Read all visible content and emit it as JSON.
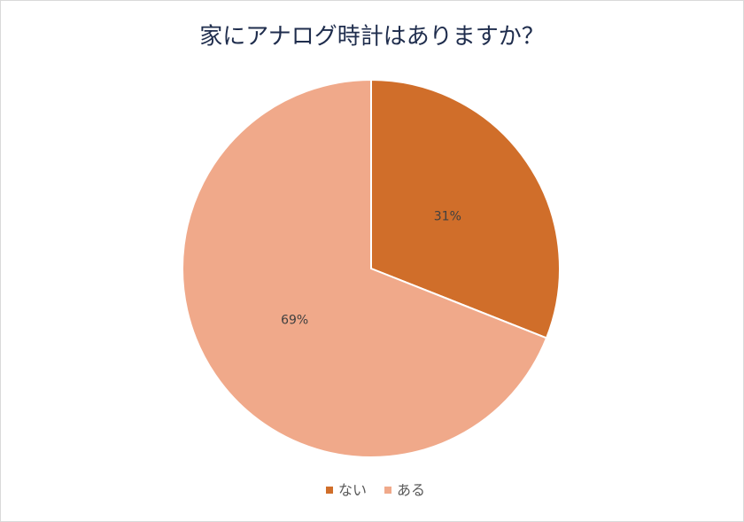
{
  "chart_data": {
    "type": "pie",
    "title": "家にアナログ時計はありますか？",
    "categories": [
      "ない",
      "ある"
    ],
    "values": [
      31,
      69
    ],
    "value_labels": [
      "31%",
      "69%"
    ],
    "colors": [
      "#d06e2a",
      "#f0a98a"
    ],
    "legend": "bottom"
  }
}
